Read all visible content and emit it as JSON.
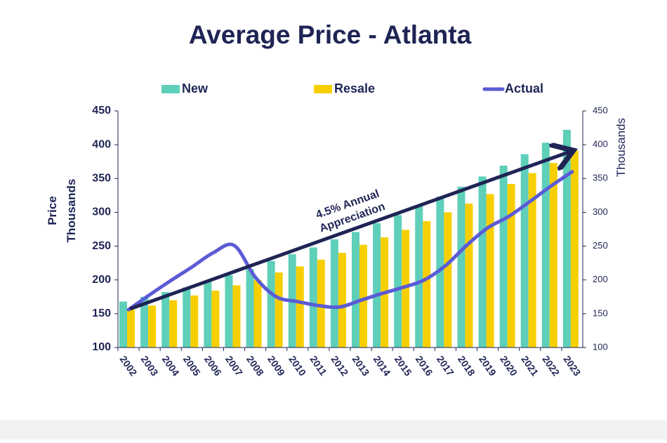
{
  "chart_data": {
    "type": "bar",
    "title": "Average Price - Atlanta",
    "ylabel": "Price",
    "ylabel_unit": "Thousands",
    "y2label": "Thousands",
    "annotation": "4.5% Annual Appreciation",
    "categories": [
      "2002",
      "2003",
      "2004",
      "2005",
      "2006",
      "2007",
      "2008",
      "2009",
      "2010",
      "2011",
      "2012",
      "2013",
      "2014",
      "2015",
      "2016",
      "2017",
      "2018",
      "2019",
      "2020",
      "2021",
      "2022",
      "2023"
    ],
    "series": [
      {
        "name": "New",
        "type": "bar",
        "color": "#5ecfb9",
        "values": [
          168,
          175,
          182,
          189,
          198,
          207,
          216,
          228,
          238,
          248,
          260,
          271,
          284,
          296,
          310,
          323,
          338,
          353,
          369,
          386,
          403,
          422
        ]
      },
      {
        "name": "Resale",
        "type": "bar",
        "color": "#f7cf00",
        "values": [
          156,
          162,
          170,
          177,
          184,
          192,
          200,
          211,
          220,
          230,
          240,
          252,
          263,
          274,
          287,
          300,
          313,
          327,
          342,
          358,
          373,
          391
        ]
      },
      {
        "name": "Actual",
        "type": "line",
        "color": "#5b5bd6",
        "values": [
          156,
          178,
          199,
          219,
          240,
          251,
          204,
          175,
          168,
          162,
          160,
          170,
          180,
          189,
          200,
          221,
          251,
          277,
          294,
          316,
          339,
          360
        ]
      }
    ],
    "ylim": [
      100,
      450
    ],
    "yticks": [
      100,
      150,
      200,
      250,
      300,
      350,
      400,
      450
    ],
    "y2lim": [
      100,
      450
    ],
    "y2ticks": [
      100,
      150,
      200,
      250,
      300,
      350,
      400,
      450
    ]
  }
}
